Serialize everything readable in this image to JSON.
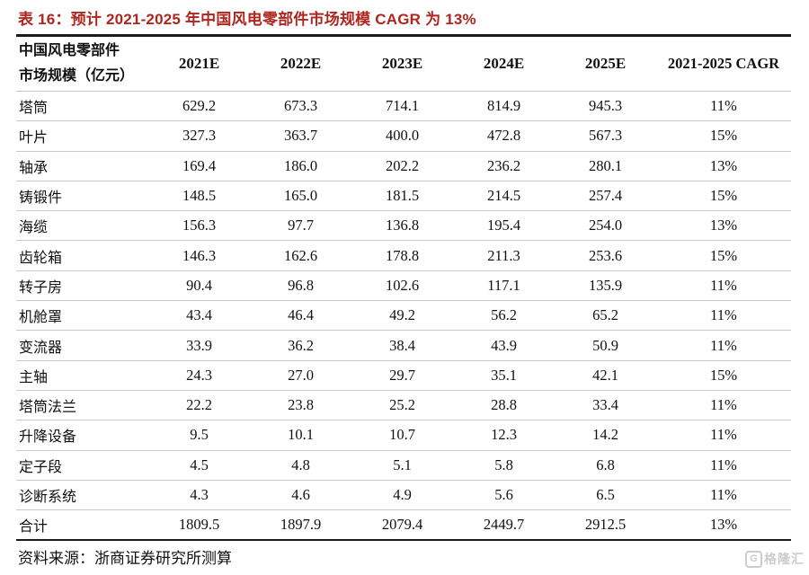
{
  "title": "表 16：预计 2021-2025 年中国风电零部件市场规模 CAGR 为 13%",
  "colors": {
    "title_red": "#ae261f",
    "border_dark": "#1c1c1c",
    "border_light": "#c9c9c9",
    "watermark_gray": "#cccccc"
  },
  "table": {
    "header": {
      "label_line1": "中国风电零部件",
      "label_line2": "市场规模（亿元）",
      "columns": [
        "2021E",
        "2022E",
        "2023E",
        "2024E",
        "2025E",
        "2021-2025 CAGR"
      ]
    },
    "rows": [
      {
        "label": "塔筒",
        "values": [
          "629.2",
          "673.3",
          "714.1",
          "814.9",
          "945.3",
          "11%"
        ]
      },
      {
        "label": "叶片",
        "values": [
          "327.3",
          "363.7",
          "400.0",
          "472.8",
          "567.3",
          "15%"
        ]
      },
      {
        "label": "轴承",
        "values": [
          "169.4",
          "186.0",
          "202.2",
          "236.2",
          "280.1",
          "13%"
        ]
      },
      {
        "label": "铸锻件",
        "values": [
          "148.5",
          "165.0",
          "181.5",
          "214.5",
          "257.4",
          "15%"
        ]
      },
      {
        "label": "海缆",
        "values": [
          "156.3",
          "97.7",
          "136.8",
          "195.4",
          "254.0",
          "13%"
        ]
      },
      {
        "label": "齿轮箱",
        "values": [
          "146.3",
          "162.6",
          "178.8",
          "211.3",
          "253.6",
          "15%"
        ]
      },
      {
        "label": "转子房",
        "values": [
          "90.4",
          "96.8",
          "102.6",
          "117.1",
          "135.9",
          "11%"
        ]
      },
      {
        "label": "机舱罩",
        "values": [
          "43.4",
          "46.4",
          "49.2",
          "56.2",
          "65.2",
          "11%"
        ]
      },
      {
        "label": "变流器",
        "values": [
          "33.9",
          "36.2",
          "38.4",
          "43.9",
          "50.9",
          "11%"
        ]
      },
      {
        "label": "主轴",
        "values": [
          "24.3",
          "27.0",
          "29.7",
          "35.1",
          "42.1",
          "15%"
        ]
      },
      {
        "label": "塔筒法兰",
        "values": [
          "22.2",
          "23.8",
          "25.2",
          "28.8",
          "33.4",
          "11%"
        ]
      },
      {
        "label": "升降设备",
        "values": [
          "9.5",
          "10.1",
          "10.7",
          "12.3",
          "14.2",
          "11%"
        ]
      },
      {
        "label": "定子段",
        "values": [
          "4.5",
          "4.8",
          "5.1",
          "5.8",
          "6.8",
          "11%"
        ]
      },
      {
        "label": "诊断系统",
        "values": [
          "4.3",
          "4.6",
          "4.9",
          "5.6",
          "6.5",
          "11%"
        ]
      },
      {
        "label": "合计",
        "values": [
          "1809.5",
          "1897.9",
          "2079.4",
          "2449.7",
          "2912.5",
          "13%"
        ]
      }
    ]
  },
  "source": "资料来源：浙商证券研究所测算",
  "watermark": {
    "logo": "G",
    "text": "格隆汇"
  }
}
